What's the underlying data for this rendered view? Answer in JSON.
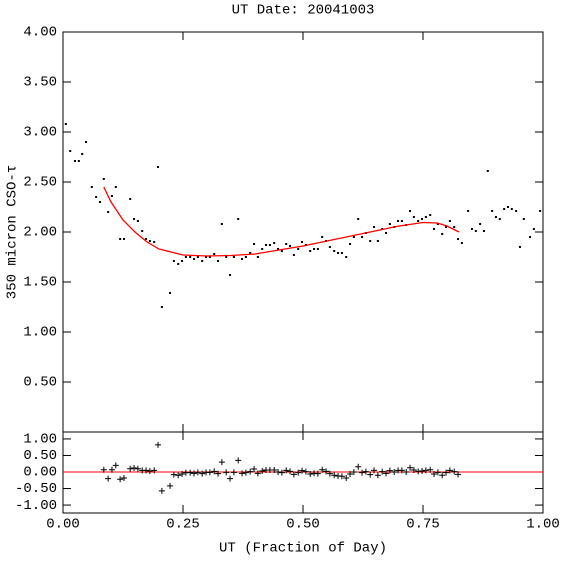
{
  "chart_data": [
    {
      "type": "scatter",
      "title": "UT Date: 20041003",
      "ylabel": "350 micron CSO-τ",
      "xlim": [
        0,
        1
      ],
      "ylim": [
        0,
        4
      ],
      "xticks": [
        0,
        0.25,
        0.5,
        0.75,
        1
      ],
      "yticks": [
        {
          "value": 0.5,
          "label": "0.50"
        },
        {
          "value": 1,
          "label": "1.00"
        },
        {
          "value": 1.5,
          "label": "1.50"
        },
        {
          "value": 2,
          "label": "2.00"
        },
        {
          "value": 2.5,
          "label": "2.50"
        },
        {
          "value": 3,
          "label": "3.00"
        },
        {
          "value": 3.5,
          "label": "3.50"
        },
        {
          "value": 4,
          "label": "4.00"
        }
      ],
      "xtick_labels": false,
      "series": [
        {
          "color": "#000000",
          "marker": "dot",
          "x": [
            0.006,
            0.015,
            0.025,
            0.033,
            0.04,
            0.048,
            0.06,
            0.069,
            0.077,
            0.085,
            0.094,
            0.102,
            0.11,
            0.119,
            0.127,
            0.14,
            0.148,
            0.156,
            0.165,
            0.173,
            0.181,
            0.19,
            0.198,
            0.206,
            0.223,
            0.231,
            0.24,
            0.248,
            0.256,
            0.265,
            0.273,
            0.281,
            0.29,
            0.298,
            0.306,
            0.315,
            0.323,
            0.331,
            0.34,
            0.348,
            0.356,
            0.365,
            0.373,
            0.381,
            0.39,
            0.398,
            0.406,
            0.415,
            0.423,
            0.431,
            0.44,
            0.448,
            0.456,
            0.465,
            0.473,
            0.481,
            0.49,
            0.498,
            0.506,
            0.515,
            0.523,
            0.531,
            0.54,
            0.548,
            0.556,
            0.565,
            0.573,
            0.581,
            0.59,
            0.598,
            0.606,
            0.615,
            0.623,
            0.631,
            0.64,
            0.648,
            0.656,
            0.665,
            0.673,
            0.681,
            0.69,
            0.698,
            0.706,
            0.715,
            0.723,
            0.731,
            0.74,
            0.748,
            0.756,
            0.765,
            0.773,
            0.781,
            0.79,
            0.798,
            0.806,
            0.815,
            0.823,
            0.831,
            0.844,
            0.852,
            0.86,
            0.869,
            0.877,
            0.885,
            0.894,
            0.902,
            0.91,
            0.919,
            0.927,
            0.935,
            0.944,
            0.952,
            0.96,
            0.973,
            0.981,
            0.994
          ],
          "values": [
            3.08,
            2.81,
            2.71,
            2.71,
            2.78,
            2.9,
            2.45,
            2.35,
            2.3,
            2.53,
            2.2,
            2.36,
            2.45,
            1.93,
            1.93,
            2.33,
            2.13,
            2.11,
            2.01,
            1.93,
            1.91,
            1.9,
            2.65,
            1.25,
            1.39,
            1.71,
            1.68,
            1.71,
            1.75,
            1.75,
            1.73,
            1.75,
            1.71,
            1.75,
            1.75,
            1.78,
            1.71,
            2.08,
            1.75,
            1.57,
            1.75,
            2.13,
            1.73,
            1.75,
            1.79,
            1.88,
            1.75,
            1.83,
            1.87,
            1.87,
            1.89,
            1.83,
            1.81,
            1.88,
            1.86,
            1.77,
            1.83,
            1.9,
            1.87,
            1.81,
            1.83,
            1.83,
            1.95,
            1.91,
            1.85,
            1.81,
            1.79,
            1.79,
            1.75,
            1.88,
            1.95,
            2.13,
            1.95,
            1.99,
            1.91,
            2.05,
            1.91,
            2.03,
            1.99,
            2.08,
            2.05,
            2.11,
            2.11,
            2.07,
            2.21,
            2.15,
            2.11,
            2.13,
            2.15,
            2.17,
            2.03,
            2.08,
            1.98,
            2.05,
            2.11,
            2.05,
            1.93,
            1.89,
            2.21,
            2.03,
            2.01,
            2.08,
            2.01,
            2.61,
            2.21,
            2.15,
            2.13,
            2.23,
            2.25,
            2.23,
            2.21,
            1.85,
            2.13,
            1.95,
            2.03,
            2.21
          ]
        },
        {
          "color": "#ff0000",
          "marker": "line",
          "x": [
            0.085,
            0.1,
            0.125,
            0.15,
            0.175,
            0.2,
            0.25,
            0.3,
            0.35,
            0.4,
            0.45,
            0.5,
            0.55,
            0.6,
            0.65,
            0.7,
            0.75,
            0.78,
            0.8,
            0.825
          ],
          "values": [
            2.45,
            2.3,
            2.12,
            2.0,
            1.9,
            1.83,
            1.77,
            1.76,
            1.765,
            1.78,
            1.82,
            1.86,
            1.91,
            1.96,
            2.01,
            2.06,
            2.095,
            2.09,
            2.06,
            2.0
          ]
        }
      ]
    },
    {
      "type": "scatter",
      "xlabel": "UT (Fraction of Day)",
      "xlim": [
        0,
        1
      ],
      "ylim": [
        -1.24,
        1.21
      ],
      "xticks": [
        {
          "value": 0,
          "label": "0.00"
        },
        {
          "value": 0.25,
          "label": "0.25"
        },
        {
          "value": 0.5,
          "label": "0.50"
        },
        {
          "value": 0.75,
          "label": "0.75"
        },
        {
          "value": 1,
          "label": "1.00"
        }
      ],
      "yticks": [
        {
          "value": -1,
          "label": "-1.00"
        },
        {
          "value": -0.5,
          "label": "-0.50"
        },
        {
          "value": 0,
          "label": "0.00"
        },
        {
          "value": 0.5,
          "label": "0.50"
        },
        {
          "value": 1,
          "label": "1.00"
        }
      ],
      "xtick_labels": true,
      "hline": 0,
      "hline_color": "#ff0000",
      "series": [
        {
          "color": "#000000",
          "marker": "plus",
          "x": [
            0.085,
            0.094,
            0.102,
            0.11,
            0.119,
            0.127,
            0.14,
            0.148,
            0.156,
            0.165,
            0.173,
            0.181,
            0.19,
            0.198,
            0.206,
            0.223,
            0.231,
            0.24,
            0.248,
            0.256,
            0.265,
            0.273,
            0.281,
            0.29,
            0.298,
            0.306,
            0.315,
            0.323,
            0.331,
            0.34,
            0.348,
            0.356,
            0.365,
            0.373,
            0.381,
            0.39,
            0.398,
            0.406,
            0.415,
            0.423,
            0.431,
            0.44,
            0.448,
            0.456,
            0.465,
            0.473,
            0.481,
            0.49,
            0.498,
            0.506,
            0.515,
            0.523,
            0.531,
            0.54,
            0.548,
            0.556,
            0.565,
            0.573,
            0.581,
            0.59,
            0.598,
            0.606,
            0.615,
            0.623,
            0.631,
            0.64,
            0.648,
            0.656,
            0.665,
            0.673,
            0.681,
            0.69,
            0.698,
            0.706,
            0.715,
            0.723,
            0.731,
            0.74,
            0.748,
            0.756,
            0.765,
            0.773,
            0.781,
            0.79,
            0.798,
            0.806,
            0.815,
            0.823
          ],
          "values": [
            0.07,
            -0.2,
            0.07,
            0.2,
            -0.22,
            -0.18,
            0.1,
            0.12,
            0.1,
            0.05,
            0.05,
            0.03,
            0.05,
            0.82,
            -0.57,
            -0.42,
            -0.08,
            -0.1,
            -0.06,
            -0.02,
            -0.02,
            -0.04,
            -0.01,
            -0.05,
            -0.01,
            -0.01,
            0.02,
            -0.05,
            0.3,
            -0.01,
            -0.2,
            -0.01,
            0.35,
            -0.04,
            -0.02,
            0.01,
            0.09,
            -0.04,
            0.03,
            0.06,
            0.06,
            0.06,
            0,
            -0.02,
            0.05,
            0.02,
            -0.07,
            -0.02,
            0.04,
            0.01,
            -0.06,
            -0.04,
            -0.05,
            0.07,
            0.02,
            -0.05,
            -0.1,
            -0.12,
            -0.13,
            -0.18,
            -0.06,
            0,
            0.16,
            -0.02,
            0.01,
            -0.08,
            0.05,
            -0.1,
            0.01,
            -0.04,
            0.04,
            0,
            0.05,
            0.05,
            0,
            0.13,
            0.06,
            0.02,
            0.03,
            0.05,
            0.07,
            -0.06,
            -0.01,
            -0.1,
            -0.02,
            0.05,
            0.01,
            -0.07
          ]
        }
      ]
    }
  ]
}
